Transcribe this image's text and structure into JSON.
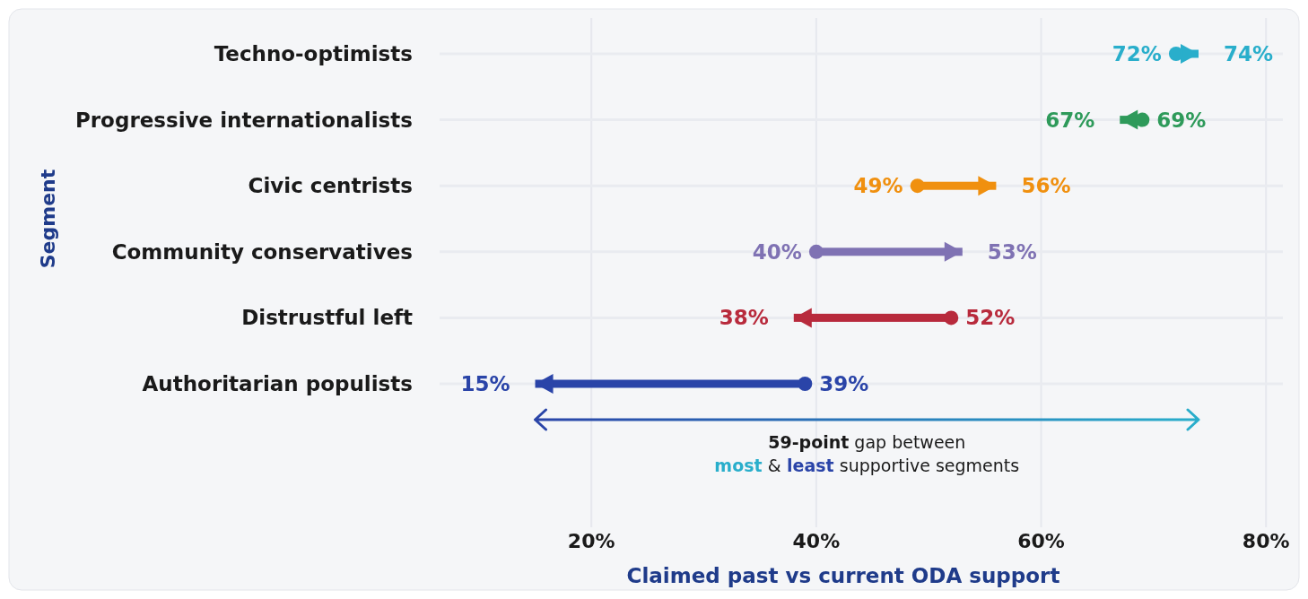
{
  "chart_data": {
    "type": "bar",
    "orientation": "horizontal",
    "xlabel": "Claimed past vs current ODA support",
    "ylabel": "Segment",
    "categories": [
      "Techno-optimists",
      "Progressive internationalists",
      "Civic centrists",
      "Community conservatives",
      "Distrustful left",
      "Authoritarian populists"
    ],
    "base": [
      72,
      69,
      49,
      40,
      52,
      39
    ],
    "values": [
      2,
      -2,
      7,
      13,
      -14,
      -24
    ],
    "colors": [
      "#29aecb",
      "#2e9a5a",
      "#f0900f",
      "#7f72b3",
      "#b82a3c",
      "#2a44a8"
    ],
    "xlim": [
      6.5,
      81.5
    ],
    "xticks": [
      {
        "value": 20,
        "label": "20%"
      },
      {
        "value": 40,
        "label": "40%"
      },
      {
        "value": 60,
        "label": "60%"
      },
      {
        "value": 80,
        "label": "80%"
      }
    ],
    "grid": true,
    "annotations": [
      {
        "text": "72%",
        "x": 72,
        "y": "Techno-optimists"
      },
      {
        "text": "74%",
        "x": 74,
        "y": "Techno-optimists"
      },
      {
        "text": "69%",
        "x": 69,
        "y": "Progressive internationalists"
      },
      {
        "text": "67%",
        "x": 67,
        "y": "Progressive internationalists"
      },
      {
        "text": "49%",
        "x": 49,
        "y": "Civic centrists"
      },
      {
        "text": "56%",
        "x": 56,
        "y": "Civic centrists"
      },
      {
        "text": "40%",
        "x": 40,
        "y": "Community conservatives"
      },
      {
        "text": "53%",
        "x": 53,
        "y": "Community conservatives"
      },
      {
        "text": "52%",
        "x": 52,
        "y": "Distrustful left"
      },
      {
        "text": "38%",
        "x": 38,
        "y": "Distrustful left"
      },
      {
        "text": "39%",
        "x": 39,
        "y": "Authoritarian populists"
      },
      {
        "text": "15%",
        "x": 15,
        "y": "Authoritarian populists"
      },
      "59-point gap between most & least supportive segments"
    ]
  }
}
